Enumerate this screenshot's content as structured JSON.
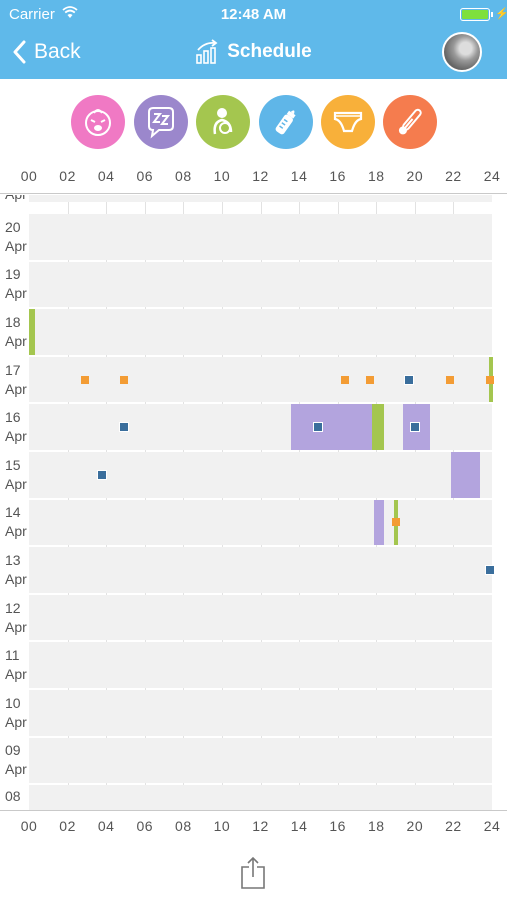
{
  "status_bar": {
    "carrier": "Carrier",
    "time": "12:48 AM"
  },
  "nav": {
    "back_label": "Back",
    "title": "Schedule"
  },
  "categories": [
    {
      "name": "crying",
      "icon": "crying-baby-icon",
      "color": "#f079c4"
    },
    {
      "name": "sleep",
      "icon": "sleep-zzz-icon",
      "color": "#9b87cc"
    },
    {
      "name": "breastfeeding",
      "icon": "breastfeeding-icon",
      "color": "#a4c64f"
    },
    {
      "name": "bottle",
      "icon": "baby-bottle-icon",
      "color": "#5fb6e8"
    },
    {
      "name": "diaper",
      "icon": "diaper-icon",
      "color": "#f8b03a"
    },
    {
      "name": "thermometer",
      "icon": "thermometer-icon",
      "color": "#f57c4e"
    }
  ],
  "hour_labels": [
    "00",
    "02",
    "04",
    "06",
    "08",
    "10",
    "12",
    "14",
    "16",
    "18",
    "20",
    "22",
    "24"
  ],
  "days": [
    {
      "day": "20",
      "month": "Apr"
    },
    {
      "day": "19",
      "month": "Apr"
    },
    {
      "day": "18",
      "month": "Apr"
    },
    {
      "day": "17",
      "month": "Apr"
    },
    {
      "day": "16",
      "month": "Apr"
    },
    {
      "day": "15",
      "month": "Apr"
    },
    {
      "day": "14",
      "month": "Apr"
    },
    {
      "day": "13",
      "month": "Apr"
    },
    {
      "day": "12",
      "month": "Apr"
    },
    {
      "day": "11",
      "month": "Apr"
    },
    {
      "day": "10",
      "month": "Apr"
    },
    {
      "day": "09",
      "month": "Apr"
    }
  ],
  "partial_top_label": {
    "month": "Apr"
  },
  "partial_bottom_label": {
    "day": "08"
  },
  "colors": {
    "sleep": "#b3a4de",
    "feeding": "#a4c64f",
    "diaper": "#f39c34",
    "bottle": "#3a6e9c",
    "header": "#5fb9ea"
  },
  "events": [
    {
      "day": "18",
      "type": "bar",
      "kind": "feeding",
      "start": 0.0,
      "end": 0.3
    },
    {
      "day": "17",
      "type": "bar",
      "kind": "feeding",
      "start": 23.85,
      "end": 24.0
    },
    {
      "day": "17",
      "type": "point",
      "kind": "diaper",
      "time": 2.9
    },
    {
      "day": "17",
      "type": "point",
      "kind": "diaper",
      "time": 4.9
    },
    {
      "day": "17",
      "type": "point",
      "kind": "diaper",
      "time": 16.4
    },
    {
      "day": "17",
      "type": "point",
      "kind": "diaper",
      "time": 17.7
    },
    {
      "day": "17",
      "type": "point",
      "kind": "bottle",
      "time": 19.7
    },
    {
      "day": "17",
      "type": "point",
      "kind": "diaper",
      "time": 21.8
    },
    {
      "day": "17",
      "type": "point",
      "kind": "diaper",
      "time": 23.9
    },
    {
      "day": "16",
      "type": "bar",
      "kind": "sleep",
      "start": 13.6,
      "end": 17.8
    },
    {
      "day": "16",
      "type": "bar",
      "kind": "feeding",
      "start": 17.8,
      "end": 18.4
    },
    {
      "day": "16",
      "type": "bar",
      "kind": "sleep",
      "start": 19.4,
      "end": 20.8
    },
    {
      "day": "16",
      "type": "point",
      "kind": "bottle",
      "time": 4.9
    },
    {
      "day": "16",
      "type": "point",
      "kind": "bottle",
      "time": 15.0
    },
    {
      "day": "16",
      "type": "point",
      "kind": "bottle",
      "time": 20.0
    },
    {
      "day": "15",
      "type": "bar",
      "kind": "sleep",
      "start": 21.9,
      "end": 23.4
    },
    {
      "day": "15",
      "type": "point",
      "kind": "bottle",
      "time": 3.8
    },
    {
      "day": "14",
      "type": "bar",
      "kind": "sleep",
      "start": 17.9,
      "end": 18.4
    },
    {
      "day": "14",
      "type": "bar",
      "kind": "feeding",
      "start": 18.9,
      "end": 19.1
    },
    {
      "day": "14",
      "type": "point",
      "kind": "diaper",
      "time": 19.0
    },
    {
      "day": "13",
      "type": "point",
      "kind": "bottle",
      "time": 23.9
    }
  ]
}
